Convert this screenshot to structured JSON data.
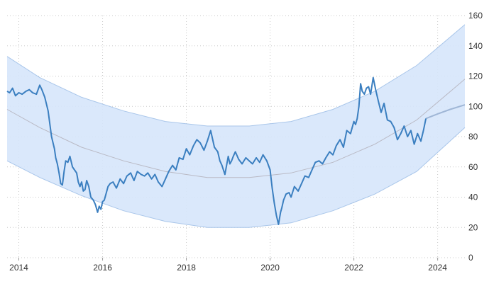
{
  "chart_data": {
    "type": "line",
    "title": "",
    "xlabel": "",
    "ylabel": "",
    "xlim": [
      2013.72,
      2024.65
    ],
    "ylim": [
      0,
      160
    ],
    "x_ticks": [
      "2014",
      "2016",
      "2018",
      "2020",
      "2022",
      "2024"
    ],
    "y_ticks": [
      "0",
      "20",
      "40",
      "60",
      "80",
      "100",
      "120",
      "140",
      "160"
    ],
    "y_axis_side": "right",
    "grid": true,
    "colors": {
      "price_line": "#3b7fc0",
      "forecast_line": "#9fb6d6",
      "band_fill": "#d6e6fb",
      "band_edge": "#a9c6ea",
      "trend_line": "#b9b9c4"
    },
    "series": [
      {
        "role": "price",
        "x": [
          2013.72,
          2013.78,
          2013.85,
          2013.92,
          2014.0,
          2014.08,
          2014.17,
          2014.25,
          2014.33,
          2014.42,
          2014.5,
          2014.55,
          2014.62,
          2014.7,
          2014.78,
          2014.85,
          2014.88,
          2014.92,
          2014.96,
          2015.0,
          2015.04,
          2015.08,
          2015.12,
          2015.17,
          2015.22,
          2015.28,
          2015.33,
          2015.38,
          2015.42,
          2015.46,
          2015.5,
          2015.54,
          2015.58,
          2015.62,
          2015.67,
          2015.72,
          2015.78,
          2015.83,
          2015.88,
          2015.92,
          2015.96,
          2016.0,
          2016.04,
          2016.08,
          2016.13,
          2016.18,
          2016.25,
          2016.33,
          2016.42,
          2016.5,
          2016.58,
          2016.67,
          2016.75,
          2016.83,
          2016.92,
          2017.0,
          2017.08,
          2017.17,
          2017.25,
          2017.33,
          2017.42,
          2017.5,
          2017.58,
          2017.67,
          2017.75,
          2017.83,
          2017.92,
          2018.0,
          2018.08,
          2018.17,
          2018.25,
          2018.33,
          2018.42,
          2018.5,
          2018.58,
          2018.67,
          2018.75,
          2018.8,
          2018.85,
          2018.92,
          2019.0,
          2019.04,
          2019.08,
          2019.12,
          2019.17,
          2019.25,
          2019.33,
          2019.42,
          2019.5,
          2019.58,
          2019.67,
          2019.75,
          2019.83,
          2019.92,
          2020.0,
          2020.05,
          2020.1,
          2020.15,
          2020.2,
          2020.25,
          2020.28,
          2020.32,
          2020.38,
          2020.45,
          2020.5,
          2020.58,
          2020.67,
          2020.75,
          2020.83,
          2020.92,
          2021.0,
          2021.08,
          2021.17,
          2021.25,
          2021.33,
          2021.42,
          2021.5,
          2021.58,
          2021.67,
          2021.75,
          2021.83,
          2021.92,
          2022.0,
          2022.04,
          2022.08,
          2022.12,
          2022.16,
          2022.2,
          2022.25,
          2022.3,
          2022.35,
          2022.4,
          2022.46,
          2022.52,
          2022.58,
          2022.65,
          2022.72,
          2022.8,
          2022.88,
          2022.96,
          2023.04,
          2023.12,
          2023.2,
          2023.28,
          2023.36,
          2023.44,
          2023.52,
          2023.6,
          2023.66,
          2023.72
        ],
        "y": [
          110,
          109,
          112,
          107,
          109,
          108,
          110,
          111,
          109,
          108,
          114,
          111,
          106,
          97,
          80,
          72,
          66,
          62,
          56,
          49,
          48,
          57,
          64,
          63,
          67,
          60,
          58,
          56,
          50,
          47,
          50,
          44,
          45,
          51,
          47,
          40,
          38,
          35,
          30,
          34,
          32,
          37,
          38,
          42,
          47,
          49,
          50,
          46,
          52,
          49,
          54,
          56,
          51,
          57,
          55,
          54,
          56,
          52,
          55,
          50,
          47,
          52,
          57,
          61,
          58,
          66,
          65,
          72,
          68,
          74,
          78,
          76,
          71,
          77,
          84,
          73,
          70,
          64,
          61,
          55,
          67,
          62,
          64,
          67,
          70,
          65,
          62,
          66,
          64,
          62,
          66,
          63,
          68,
          64,
          58,
          46,
          36,
          28,
          22,
          30,
          33,
          38,
          42,
          43,
          40,
          47,
          44,
          49,
          54,
          53,
          58,
          63,
          64,
          62,
          66,
          70,
          68,
          74,
          78,
          73,
          84,
          82,
          90,
          88,
          92,
          100,
          115,
          110,
          108,
          112,
          113,
          108,
          119,
          111,
          104,
          96,
          102,
          91,
          90,
          86,
          78,
          82,
          87,
          80,
          84,
          75,
          82,
          77,
          84,
          92
        ]
      },
      {
        "role": "forecast",
        "x": [
          2023.72,
          2024.0,
          2024.3,
          2024.65
        ],
        "y": [
          92,
          95,
          98,
          101
        ]
      },
      {
        "role": "trend",
        "x": [
          2013.72,
          2014.5,
          2015.5,
          2016.5,
          2017.5,
          2018.5,
          2019.5,
          2020.5,
          2021.5,
          2022.5,
          2023.5,
          2024.65
        ],
        "y": [
          98,
          86,
          73,
          64,
          57,
          53,
          53,
          56,
          63,
          75,
          91,
          118
        ]
      },
      {
        "role": "band_upper",
        "x": [
          2013.72,
          2014.5,
          2015.5,
          2016.5,
          2017.5,
          2018.5,
          2019.5,
          2020.5,
          2021.5,
          2022.5,
          2023.5,
          2024.65
        ],
        "y": [
          133,
          119,
          106,
          97,
          90,
          87,
          87,
          90,
          98,
          110,
          127,
          154
        ]
      },
      {
        "role": "band_lower",
        "x": [
          2013.72,
          2014.5,
          2015.5,
          2016.5,
          2017.5,
          2018.5,
          2019.5,
          2020.5,
          2021.5,
          2022.5,
          2023.5,
          2024.65
        ],
        "y": [
          64,
          53,
          41,
          31,
          24,
          20,
          20,
          23,
          31,
          42,
          57,
          86
        ]
      }
    ]
  }
}
